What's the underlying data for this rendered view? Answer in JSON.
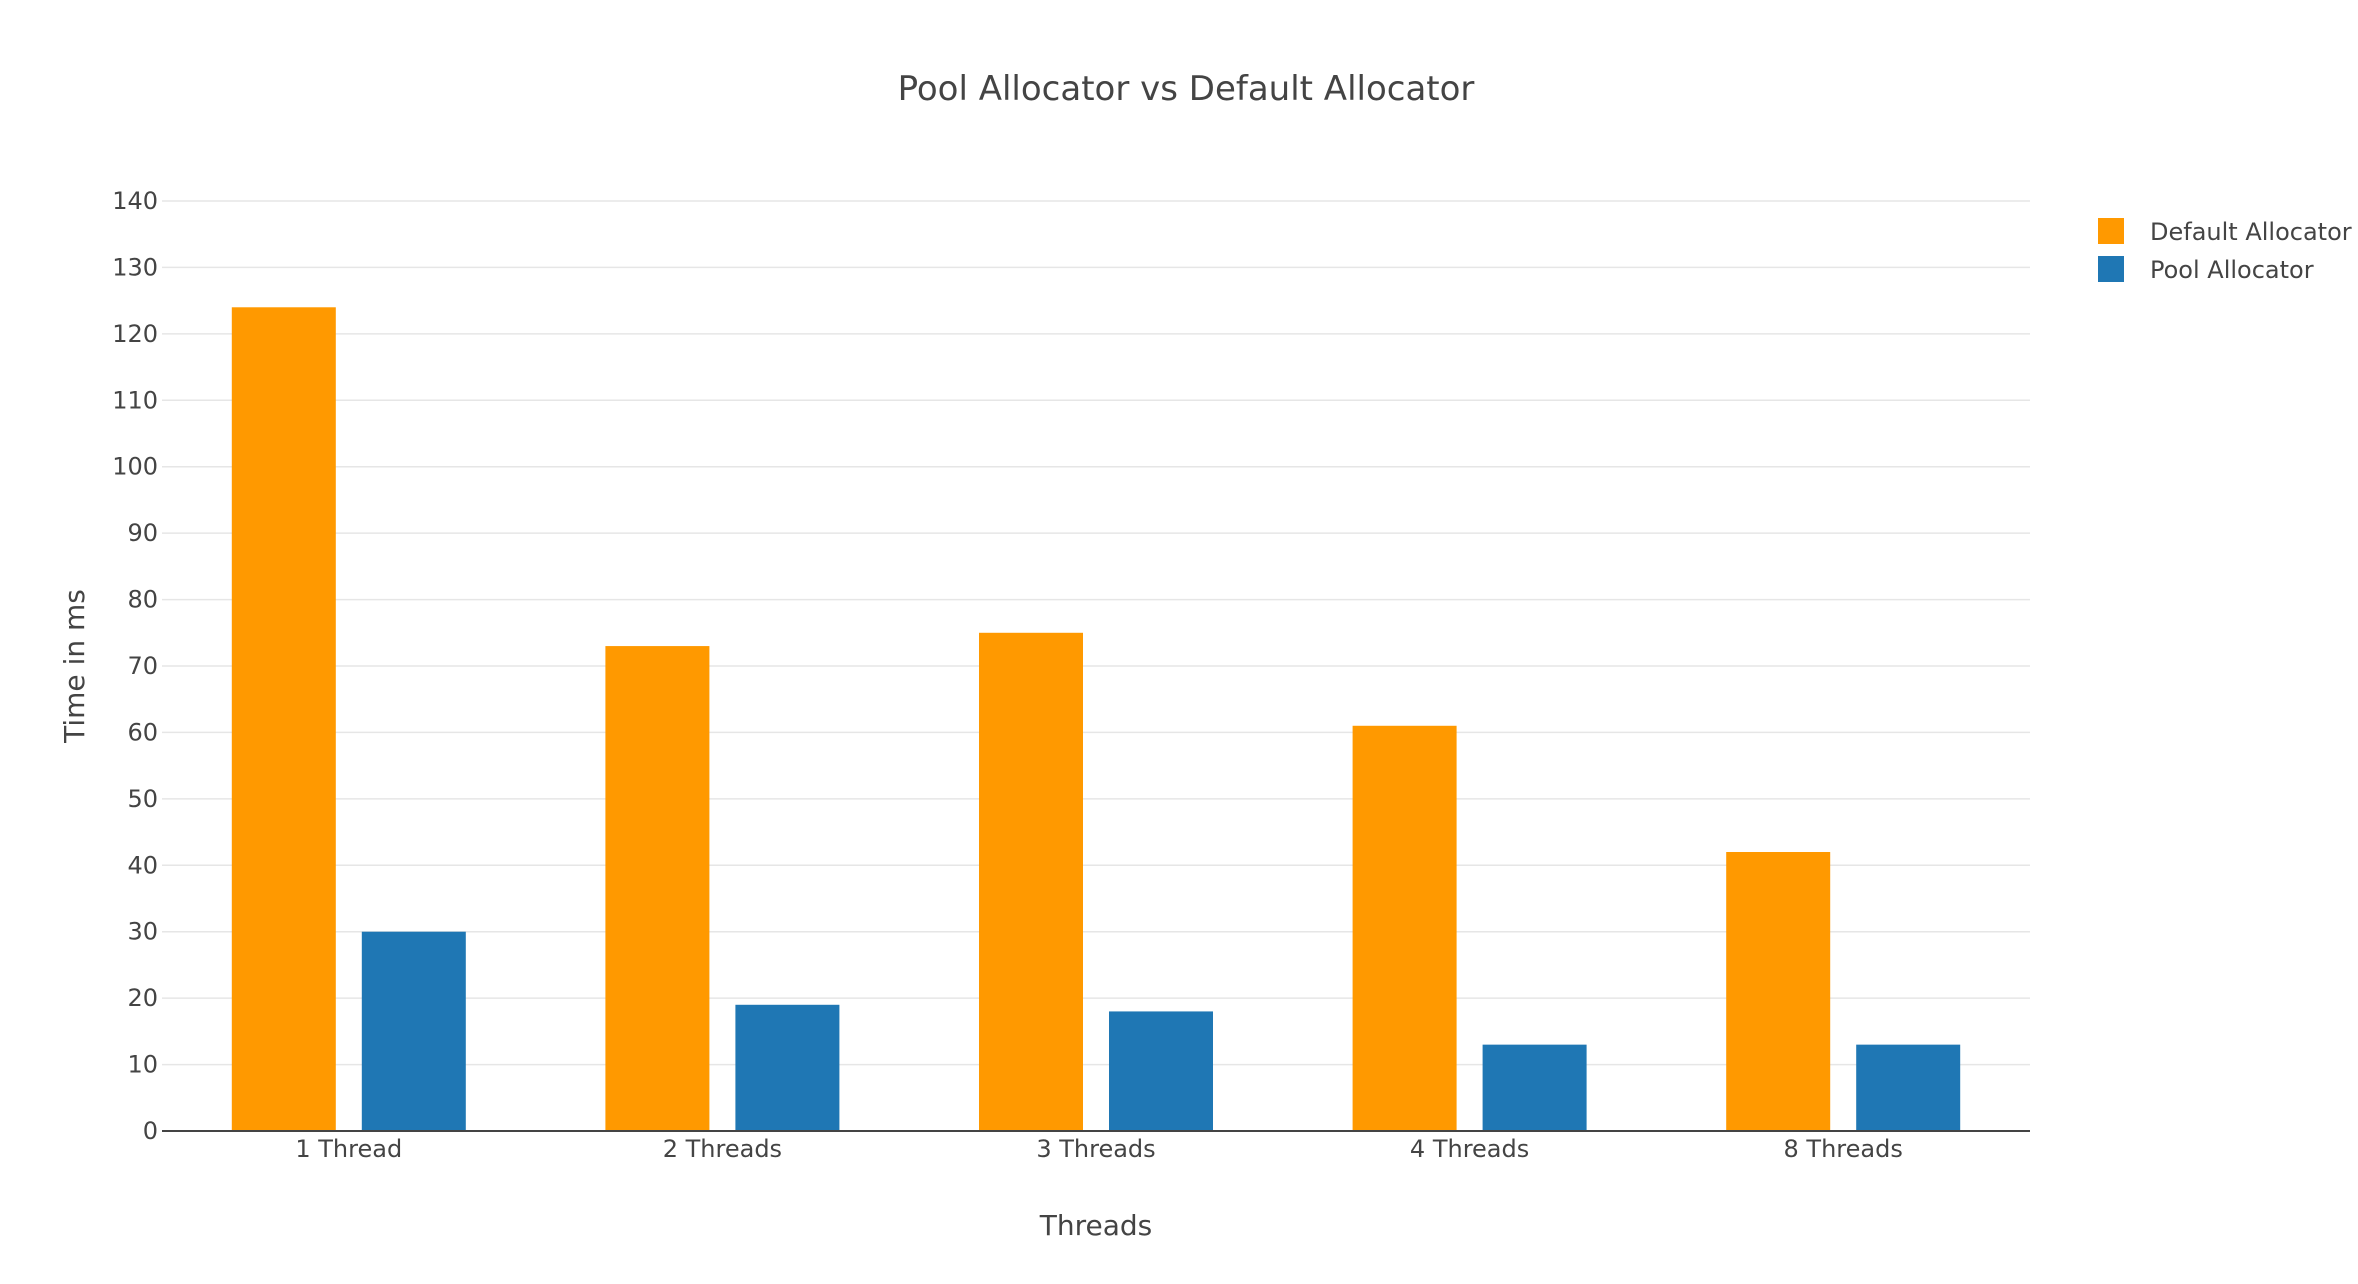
{
  "chart_data": {
    "type": "bar",
    "title": "Pool Allocator vs Default Allocator",
    "xlabel": "Threads",
    "ylabel": "Time in ms",
    "categories": [
      "1 Thread",
      "2 Threads",
      "3 Threads",
      "4 Threads",
      "8 Threads"
    ],
    "series": [
      {
        "name": "Default Allocator",
        "color": "#ff9900",
        "values": [
          124,
          73,
          75,
          61,
          42
        ]
      },
      {
        "name": "Pool Allocator",
        "color": "#1f77b4",
        "values": [
          30,
          19,
          18,
          13,
          13
        ]
      }
    ],
    "ylim": [
      0,
      140
    ],
    "yticks": [
      0,
      10,
      20,
      30,
      40,
      50,
      60,
      70,
      80,
      90,
      100,
      110,
      120,
      130,
      140
    ],
    "grid": true,
    "legend": "top-right"
  }
}
